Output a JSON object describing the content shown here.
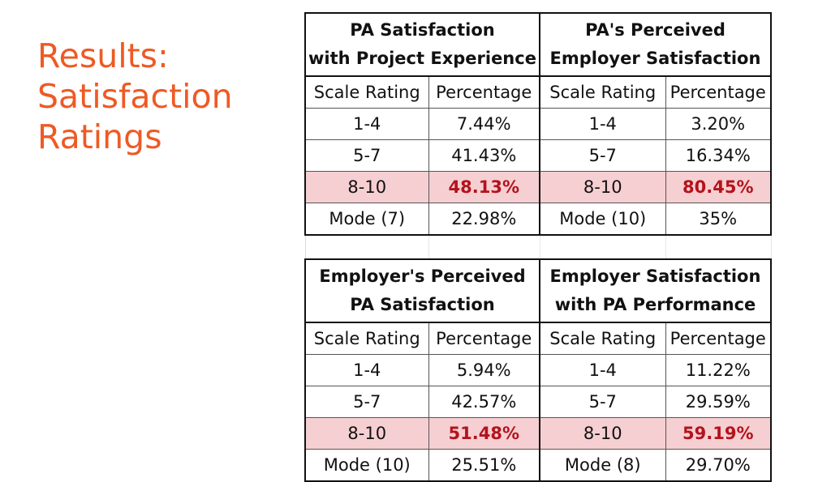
{
  "slide": {
    "title_lines": [
      "Results:",
      "Satisfaction",
      "Ratings"
    ]
  },
  "colors": {
    "title": "#ee5a24",
    "highlight_row": "#f6cfd2",
    "highlight_value": "#b3131d"
  },
  "tables": [
    {
      "title_lines": [
        "PA Satisfaction",
        "with Project Experience"
      ],
      "col_headers": [
        "Scale Rating",
        "Percentage"
      ],
      "rows": [
        {
          "scale": "1-4",
          "pct": "7.44%"
        },
        {
          "scale": "5-7",
          "pct": "41.43%"
        },
        {
          "scale": "8-10",
          "pct": "48.13%"
        },
        {
          "scale": "Mode (7)",
          "pct": "22.98%"
        }
      ]
    },
    {
      "title_lines": [
        "PA's Perceived",
        "Employer Satisfaction"
      ],
      "col_headers": [
        "Scale Rating",
        "Percentage"
      ],
      "rows": [
        {
          "scale": "1-4",
          "pct": "3.20%"
        },
        {
          "scale": "5-7",
          "pct": "16.34%"
        },
        {
          "scale": "8-10",
          "pct": "80.45%"
        },
        {
          "scale": "Mode (10)",
          "pct": "35%"
        }
      ]
    },
    {
      "title_lines": [
        "Employer's Perceived",
        "PA Satisfaction"
      ],
      "col_headers": [
        "Scale Rating",
        "Percentage"
      ],
      "rows": [
        {
          "scale": "1-4",
          "pct": "5.94%"
        },
        {
          "scale": "5-7",
          "pct": "42.57%"
        },
        {
          "scale": "8-10",
          "pct": "51.48%"
        },
        {
          "scale": "Mode (10)",
          "pct": "25.51%"
        }
      ]
    },
    {
      "title_lines": [
        "Employer Satisfaction",
        "with PA Performance"
      ],
      "col_headers": [
        "Scale Rating",
        "Percentage"
      ],
      "rows": [
        {
          "scale": "1-4",
          "pct": "11.22%"
        },
        {
          "scale": "5-7",
          "pct": "29.59%"
        },
        {
          "scale": "8-10",
          "pct": "59.19%"
        },
        {
          "scale": "Mode (8)",
          "pct": "29.70%"
        }
      ]
    }
  ],
  "highlighted_row_index": 2
}
